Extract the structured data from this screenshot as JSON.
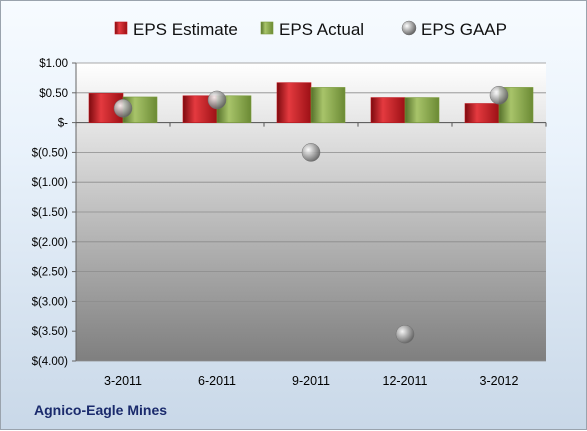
{
  "chart_data": {
    "type": "bar",
    "categories": [
      "3-2011",
      "6-2011",
      "9-2011",
      "12-2011",
      "3-2012"
    ],
    "series": [
      {
        "name": "EPS Estimate",
        "kind": "bar",
        "color": "#c0141c",
        "values": [
          0.49,
          0.45,
          0.67,
          0.42,
          0.32
        ]
      },
      {
        "name": "EPS Actual",
        "kind": "bar",
        "color": "#7a9a3a",
        "values": [
          0.43,
          0.45,
          0.59,
          0.42,
          0.59
        ]
      },
      {
        "name": "EPS GAAP",
        "kind": "scatter",
        "color": "#a0a0a0",
        "values": [
          0.24,
          0.38,
          -0.5,
          -3.55,
          0.46
        ]
      }
    ],
    "yticks": [
      "$1.00",
      "$0.50",
      "$-",
      "$(0.50)",
      "$(1.00)",
      "$(1.50)",
      "$(2.00)",
      "$(2.50)",
      "$(3.00)",
      "$(3.50)",
      "$(4.00)"
    ],
    "ylim": [
      -4,
      1
    ],
    "grid": true,
    "legend_position": "top"
  },
  "footer": {
    "company": "Agnico-Eagle Mines"
  }
}
